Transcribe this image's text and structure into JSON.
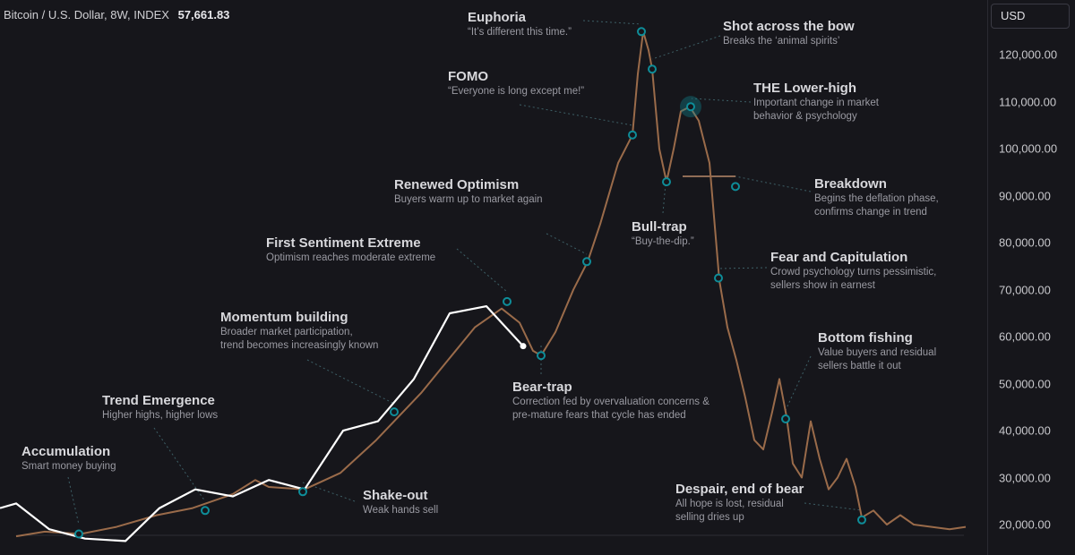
{
  "header": {
    "symbol": "Bitcoin / U.S. Dollar, 8W, INDEX",
    "price": "57,661.83"
  },
  "axis": {
    "currency": "USD"
  },
  "colors": {
    "background": "#16161b",
    "cycle_line": "#9a6b4a",
    "price_line": "#ffffff",
    "marker": "#0e8d99"
  },
  "chart_data": {
    "type": "line",
    "ylim": [
      14000,
      126000
    ],
    "y_ticks": [
      {
        "value": 20000,
        "label": "20,000.00"
      },
      {
        "value": 30000,
        "label": "30,000.00"
      },
      {
        "value": 40000,
        "label": "40,000.00"
      },
      {
        "value": 50000,
        "label": "50,000.00"
      },
      {
        "value": 60000,
        "label": "60,000.00"
      },
      {
        "value": 70000,
        "label": "70,000.00"
      },
      {
        "value": 80000,
        "label": "80,000.00"
      },
      {
        "value": 90000,
        "label": "90,000.00"
      },
      {
        "value": 100000,
        "label": "100,000.00"
      },
      {
        "value": 110000,
        "label": "110,000.00"
      },
      {
        "value": 120000,
        "label": "120,000.00"
      }
    ],
    "series": [
      {
        "values": [
          [
            18,
            17500
          ],
          [
            50,
            18500
          ],
          [
            90,
            18000
          ],
          [
            130,
            19500
          ],
          [
            175,
            22000
          ],
          [
            215,
            23500
          ],
          [
            260,
            26500
          ],
          [
            285,
            29500
          ],
          [
            300,
            28000
          ],
          [
            340,
            27500
          ],
          [
            380,
            31000
          ],
          [
            420,
            38000
          ],
          [
            470,
            48000
          ],
          [
            500,
            55000
          ],
          [
            530,
            62000
          ],
          [
            560,
            66000
          ],
          [
            580,
            63000
          ],
          [
            595,
            57000
          ],
          [
            604,
            56000
          ],
          [
            620,
            61000
          ],
          [
            640,
            70000
          ],
          [
            656,
            76000
          ],
          [
            670,
            84000
          ],
          [
            690,
            97000
          ],
          [
            706,
            103000
          ],
          [
            712,
            116000
          ],
          [
            718,
            125000
          ],
          [
            724,
            121000
          ],
          [
            728,
            117000
          ],
          [
            736,
            100000
          ],
          [
            744,
            93000
          ],
          [
            752,
            100000
          ],
          [
            760,
            108000
          ],
          [
            770,
            109000
          ],
          [
            780,
            106000
          ],
          [
            792,
            97000
          ],
          [
            803,
            72000
          ],
          [
            812,
            62000
          ],
          [
            822,
            55000
          ],
          [
            832,
            47000
          ],
          [
            842,
            38000
          ],
          [
            852,
            36000
          ],
          [
            862,
            44000
          ],
          [
            870,
            51000
          ],
          [
            878,
            43000
          ],
          [
            885,
            33000
          ],
          [
            895,
            30000
          ],
          [
            905,
            42000
          ],
          [
            915,
            34000
          ],
          [
            925,
            27500
          ],
          [
            935,
            30000
          ],
          [
            945,
            34000
          ],
          [
            955,
            28000
          ],
          [
            962,
            21500
          ],
          [
            975,
            23000
          ],
          [
            990,
            20000
          ],
          [
            1005,
            22000
          ],
          [
            1020,
            20000
          ],
          [
            1060,
            19000
          ],
          [
            1078,
            19500
          ]
        ]
      },
      {
        "values": [
          [
            0,
            23500
          ],
          [
            18,
            24500
          ],
          [
            55,
            19000
          ],
          [
            95,
            17000
          ],
          [
            140,
            16500
          ],
          [
            178,
            23500
          ],
          [
            218,
            27500
          ],
          [
            260,
            26000
          ],
          [
            300,
            29500
          ],
          [
            340,
            27500
          ],
          [
            383,
            40000
          ],
          [
            422,
            42000
          ],
          [
            462,
            51000
          ],
          [
            502,
            65000
          ],
          [
            543,
            66500
          ],
          [
            584,
            58000
          ]
        ]
      }
    ]
  },
  "annotations": [
    {
      "title": "Euphoria",
      "desc": "“It’s different this time.”"
    },
    {
      "title": "Shot across the bow",
      "desc": "Breaks the ‘animal spirits’"
    },
    {
      "title": "FOMO",
      "desc": "“Everyone is long except me!”"
    },
    {
      "title": "THE Lower-high",
      "desc": "Important change in market\nbehavior & psychology"
    },
    {
      "title": "Breakdown",
      "desc": "Begins the deflation phase,\nconfirms change in trend"
    },
    {
      "title": "Renewed Optimism",
      "desc": "Buyers warm up to market again"
    },
    {
      "title": "Bull-trap",
      "desc": "“Buy-the-dip.”"
    },
    {
      "title": "First Sentiment Extreme",
      "desc": "Optimism reaches moderate extreme"
    },
    {
      "title": "Fear and Capitulation",
      "desc": "Crowd psychology turns pessimistic,\nsellers show in earnest"
    },
    {
      "title": "Momentum building",
      "desc": "Broader market participation,\ntrend becomes increasingly known"
    },
    {
      "title": "Bottom fishing",
      "desc": "Value buyers and residual\nsellers battle it out"
    },
    {
      "title": "Bear-trap",
      "desc": "Correction fed by overvaluation concerns &\npre-mature fears that cycle has ended"
    },
    {
      "title": "Trend Emergence",
      "desc": "Higher highs, higher lows"
    },
    {
      "title": "Accumulation",
      "desc": "Smart money buying"
    },
    {
      "title": "Shake-out",
      "desc": "Weak hands sell"
    },
    {
      "title": "Despair, end of bear",
      "desc": "All hope is lost, residual\nselling dries up"
    }
  ],
  "markers": [
    {
      "x": 88,
      "y": 18000
    },
    {
      "x": 229,
      "y": 23000
    },
    {
      "x": 338,
      "y": 27000
    },
    {
      "x": 440,
      "y": 44000
    },
    {
      "x": 566,
      "y": 67500
    },
    {
      "x": 604,
      "y": 56000
    },
    {
      "x": 655,
      "y": 76000
    },
    {
      "x": 706,
      "y": 103000
    },
    {
      "x": 716,
      "y": 125000
    },
    {
      "x": 728,
      "y": 117000
    },
    {
      "x": 744,
      "y": 93000
    },
    {
      "x": 771,
      "y": 109000
    },
    {
      "x": 821,
      "y": 92000
    },
    {
      "x": 802,
      "y": 72500
    },
    {
      "x": 877,
      "y": 42500
    },
    {
      "x": 962,
      "y": 21000
    }
  ]
}
